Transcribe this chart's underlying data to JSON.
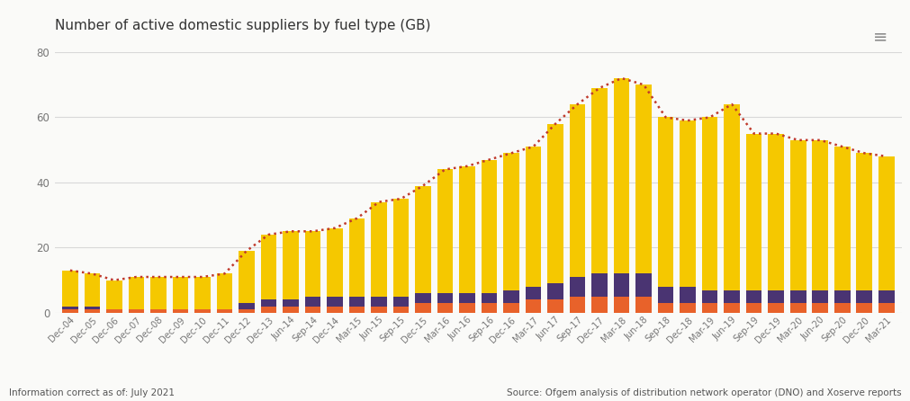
{
  "title": "Number of active domestic suppliers by fuel type (GB)",
  "categories": [
    "Dec-04",
    "Dec-05",
    "Dec-06",
    "Dec-07",
    "Dec-08",
    "Dec-09",
    "Dec-10",
    "Dec-11",
    "Dec-12",
    "Dec-13",
    "Jun-14",
    "Sep-14",
    "Dec-14",
    "Mar-15",
    "Jun-15",
    "Sep-15",
    "Dec-15",
    "Mar-16",
    "Jun-16",
    "Sep-16",
    "Dec-16",
    "Mar-17",
    "Jun-17",
    "Sep-17",
    "Dec-17",
    "Mar-18",
    "Jun-18",
    "Sep-18",
    "Dec-18",
    "Mar-19",
    "Jun-19",
    "Sep-19",
    "Dec-19",
    "Mar-20",
    "Jun-20",
    "Sep-20",
    "Dec-20",
    "Mar-21"
  ],
  "gas": [
    1,
    1,
    1,
    1,
    1,
    1,
    1,
    1,
    1,
    2,
    2,
    2,
    2,
    2,
    2,
    2,
    3,
    3,
    3,
    3,
    3,
    4,
    4,
    5,
    5,
    5,
    5,
    3,
    3,
    3,
    3,
    3,
    3,
    3,
    3,
    3,
    3,
    3
  ],
  "electricity": [
    1,
    1,
    0,
    0,
    0,
    0,
    0,
    0,
    2,
    2,
    2,
    3,
    3,
    3,
    3,
    3,
    3,
    3,
    3,
    3,
    4,
    4,
    5,
    6,
    7,
    7,
    7,
    5,
    5,
    4,
    4,
    4,
    4,
    4,
    4,
    4,
    4,
    4
  ],
  "gas_and_electricity": [
    11,
    10,
    9,
    10,
    10,
    10,
    10,
    11,
    16,
    20,
    21,
    20,
    21,
    24,
    29,
    30,
    33,
    38,
    39,
    41,
    42,
    43,
    49,
    53,
    57,
    60,
    58,
    52,
    51,
    53,
    57,
    48,
    48,
    46,
    46,
    44,
    42,
    41
  ],
  "total": [
    13,
    12,
    10,
    11,
    11,
    11,
    11,
    12,
    19,
    24,
    25,
    25,
    26,
    29,
    34,
    35,
    39,
    44,
    45,
    47,
    49,
    51,
    58,
    64,
    69,
    72,
    70,
    60,
    59,
    60,
    64,
    55,
    55,
    53,
    53,
    51,
    49,
    48
  ],
  "gas_color": "#e8622a",
  "electricity_color": "#4a3472",
  "gas_electricity_color": "#f5c800",
  "total_color": "#c0392b",
  "bg_color": "#fafaf8",
  "grid_color": "#d8d8d8",
  "ylim": [
    0,
    80
  ],
  "yticks": [
    0,
    20,
    40,
    60,
    80
  ],
  "footer_left": "Information correct as of: July 2021",
  "footer_right": "Source: Ofgem analysis of distribution network operator (DNO) and Xoserve reports"
}
